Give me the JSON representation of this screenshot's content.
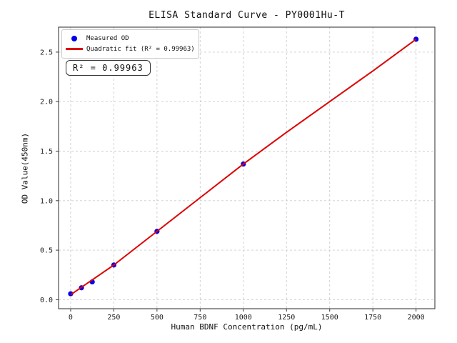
{
  "chart_data": {
    "type": "scatter",
    "title": "ELISA Standard Curve - PY0001Hu-T",
    "xlabel": "Human BDNF Concentration (pg/mL)",
    "ylabel": "OD Value(450nm)",
    "annotation": "R² = 0.99963",
    "r_squared": "0.99963",
    "xlim": [
      -70,
      2109
    ],
    "ylim": [
      -0.091,
      2.752
    ],
    "xticks": [
      0,
      250,
      500,
      750,
      1000,
      1250,
      1500,
      1750,
      2000
    ],
    "xtick_labels": [
      "0",
      "250",
      "500",
      "750",
      "1000",
      "1250",
      "1500",
      "1750",
      "2000"
    ],
    "yticks": [
      0,
      0.5,
      1.0,
      1.5,
      2.0,
      2.5
    ],
    "ytick_labels": [
      "0.0",
      "0.5",
      "1.0",
      "1.5",
      "2.0",
      "2.5"
    ],
    "grid": true,
    "legend_position": "upper-left",
    "series": [
      {
        "name": "Measured OD",
        "type": "scatter",
        "color": "#0000ee",
        "points": [
          [
            0,
            0.06
          ],
          [
            62.5,
            0.12
          ],
          [
            125,
            0.18
          ],
          [
            250,
            0.35
          ],
          [
            500,
            0.69
          ],
          [
            1000,
            1.37
          ],
          [
            2000,
            2.63
          ]
        ]
      },
      {
        "name": "Quadratic fit (R² = 0.99963)",
        "type": "line",
        "color": "#dd0000",
        "points": [
          [
            0,
            0.05
          ],
          [
            125,
            0.2
          ],
          [
            250,
            0.35
          ],
          [
            500,
            0.69
          ],
          [
            750,
            1.03
          ],
          [
            1000,
            1.37
          ],
          [
            1250,
            1.69
          ],
          [
            1500,
            2.0
          ],
          [
            1750,
            2.31
          ],
          [
            2000,
            2.63
          ]
        ]
      }
    ],
    "colors": {
      "grid": "#cccccc",
      "frame": "#3c3c3c",
      "tick_text": "#1a1a1a",
      "background": "#ffffff"
    }
  }
}
